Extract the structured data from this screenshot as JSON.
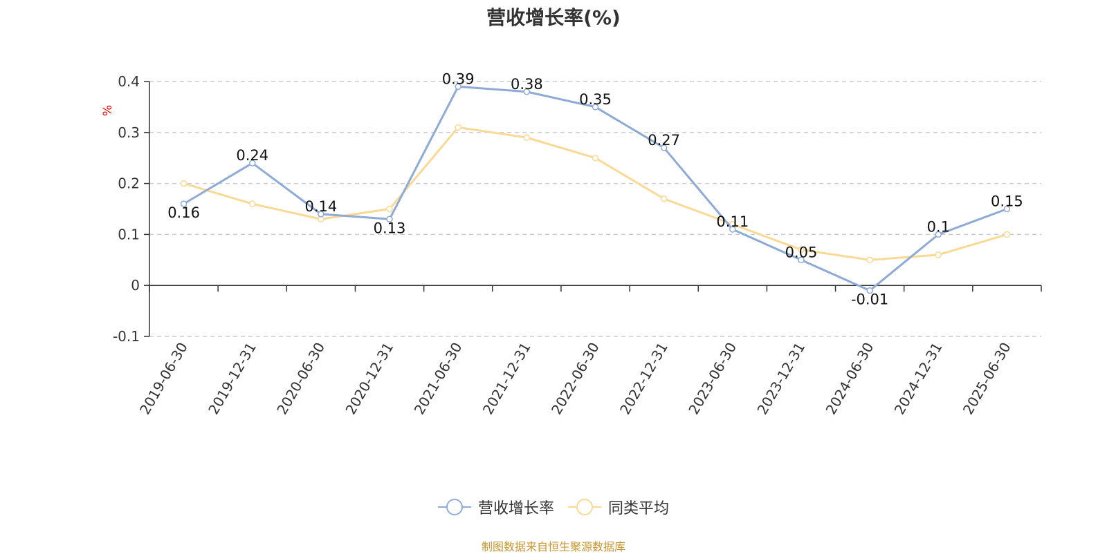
{
  "source_note": "制图数据来自恒生聚源数据库",
  "colors": {
    "series1": "#8eaad6",
    "series2": "#fbd994",
    "unit": "#e60000",
    "source": "#c8962c"
  },
  "chart_data": {
    "type": "line",
    "title": "营收增长率(%)",
    "ylabel": "%",
    "xlabel": "",
    "ylim": [
      -0.1,
      0.4
    ],
    "yticks": [
      -0.1,
      0,
      0.1,
      0.2,
      0.3,
      0.4
    ],
    "ytick_labels": [
      "-0.1",
      "0",
      "0.1",
      "0.2",
      "0.3",
      "0.4"
    ],
    "grid": true,
    "legend_position": "bottom-center",
    "categories": [
      "2019-06-30",
      "2019-12-31",
      "2020-06-30",
      "2020-12-31",
      "2021-06-30",
      "2021-12-31",
      "2022-06-30",
      "2022-12-31",
      "2023-06-30",
      "2023-12-31",
      "2024-06-30",
      "2024-12-31",
      "2025-06-30"
    ],
    "series": [
      {
        "name": "营收增长率",
        "values": [
          0.16,
          0.24,
          0.14,
          0.13,
          0.39,
          0.38,
          0.35,
          0.27,
          0.11,
          0.05,
          -0.01,
          0.1,
          0.15
        ],
        "labels": [
          "0.16",
          "0.24",
          "0.14",
          "0.13",
          "0.39",
          "0.38",
          "0.35",
          "0.27",
          "0.11",
          "0.05",
          "-0.01",
          "0.1",
          "0.15"
        ]
      },
      {
        "name": "同类平均",
        "values": [
          0.2,
          0.16,
          0.13,
          0.15,
          0.31,
          0.29,
          0.25,
          0.17,
          0.12,
          0.07,
          0.05,
          0.06,
          0.1
        ]
      }
    ]
  }
}
